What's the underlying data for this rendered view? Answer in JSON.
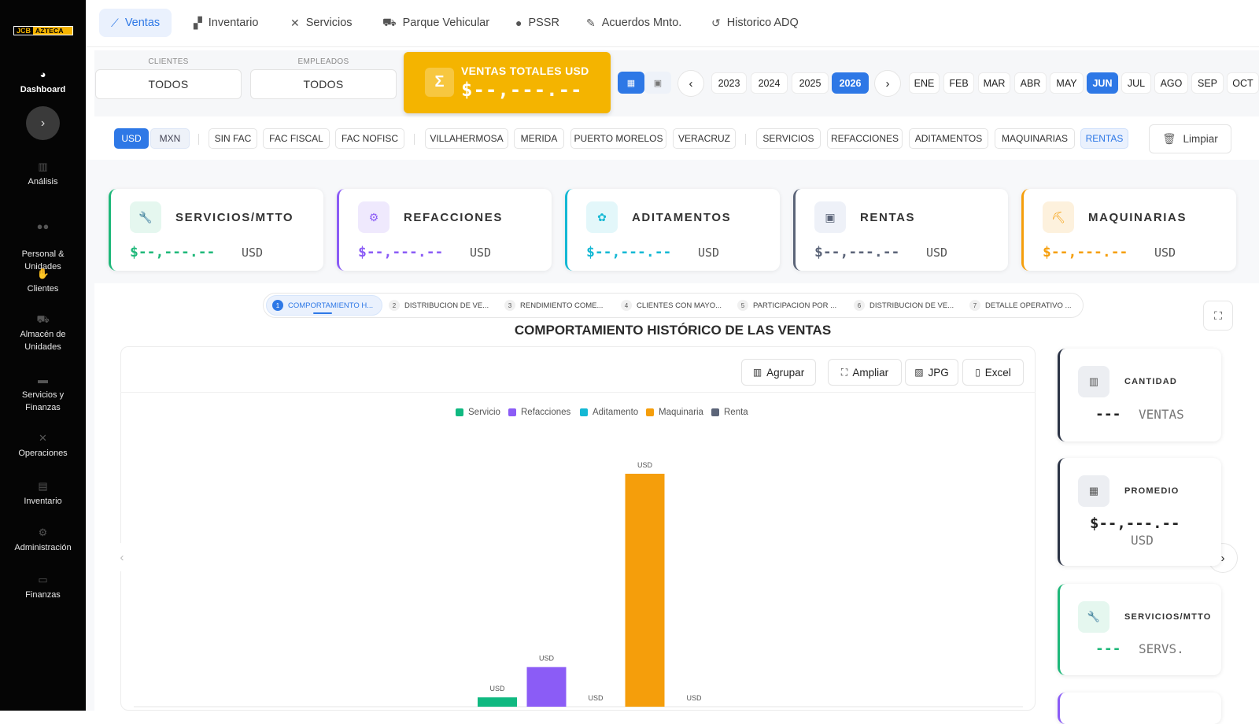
{
  "brand": {
    "logo_left": "JCB",
    "logo_right": "AZTECA"
  },
  "sidebar": {
    "items": [
      {
        "label": "Dashboard",
        "icon": "gauge-icon"
      },
      {
        "label": "Análisis",
        "icon": "bar-chart-icon"
      },
      {
        "label": "Personal &\nUnidades",
        "icon": "users-icon"
      },
      {
        "label": "Clientes",
        "icon": "handshake-icon"
      },
      {
        "label": "Almacén de\nUnidades",
        "icon": "truck-icon"
      },
      {
        "label": "Servicios y\nFinanzas",
        "icon": "folder-icon"
      },
      {
        "label": "Operaciones",
        "icon": "tools-icon"
      },
      {
        "label": "Inventario",
        "icon": "warehouse-icon"
      },
      {
        "label": "Administración",
        "icon": "gears-icon"
      },
      {
        "label": "Finanzas",
        "icon": "wallet-icon"
      }
    ],
    "collapse_icon": "chevron-right-icon"
  },
  "topnav": {
    "tabs": [
      {
        "label": "Ventas",
        "icon": "line-chart-icon"
      },
      {
        "label": "Inventario",
        "icon": "boxes-icon"
      },
      {
        "label": "Servicios",
        "icon": "wrench-icon"
      },
      {
        "label": "Parque Vehicular",
        "icon": "truck-icon"
      },
      {
        "label": "PSSR",
        "icon": "user-icon"
      },
      {
        "label": "Acuerdos Mnto.",
        "icon": "file-sign-icon"
      },
      {
        "label": "Historico ADQ",
        "icon": "history-icon"
      }
    ]
  },
  "filters": {
    "clientes": {
      "label": "CLIENTES",
      "value": "TODOS"
    },
    "empleados": {
      "label": "EMPLEADOS",
      "value": "TODOS"
    },
    "total": {
      "label": "VENTAS TOTALES USD",
      "value": "$--,---.--",
      "icon": "sigma-icon"
    },
    "years": [
      "2023",
      "2024",
      "2025",
      "2026"
    ],
    "selected_year": "2026",
    "months": [
      "ENE",
      "FEB",
      "MAR",
      "ABR",
      "MAY",
      "JUN",
      "JUL",
      "AGO",
      "SEP",
      "OCT"
    ],
    "selected_month": "JUN"
  },
  "chips": {
    "currency": [
      "USD",
      "MXN"
    ],
    "invoice": [
      "SIN FAC",
      "FAC FISCAL",
      "FAC NOFISC"
    ],
    "branches": [
      "VILLAHERMOSA",
      "MERIDA",
      "PUERTO MORELOS",
      "VERACRUZ"
    ],
    "categories": [
      "SERVICIOS",
      "REFACCIONES",
      "ADITAMENTOS",
      "MAQUINARIAS",
      "RENTAS"
    ],
    "clear_label": "Limpiar"
  },
  "kpis": [
    {
      "title": "SERVICIOS/MTTO",
      "value": "$--,---.--",
      "currency": "USD",
      "color": "#1fb87a",
      "icon": "wrench-icon"
    },
    {
      "title": "REFACCIONES",
      "value": "$--,---.--",
      "currency": "USD",
      "color": "#8b5cf6",
      "icon": "gear-icon"
    },
    {
      "title": "ADITAMENTOS",
      "value": "$--,---.--",
      "currency": "USD",
      "color": "#14b8d4",
      "icon": "puzzle-icon"
    },
    {
      "title": "RENTAS",
      "value": "$--,---.--",
      "currency": "USD",
      "color": "#5b6478",
      "icon": "calendar-icon"
    },
    {
      "title": "MAQUINARIAS",
      "value": "$--,---.--",
      "currency": "USD",
      "color": "#f59e0b",
      "icon": "excavator-icon"
    }
  ],
  "steps": [
    {
      "num": "1",
      "label": "COMPORTAMIENTO H..."
    },
    {
      "num": "2",
      "label": "DISTRIBUCION DE VE..."
    },
    {
      "num": "3",
      "label": "RENDIMIENTO COME..."
    },
    {
      "num": "4",
      "label": "CLIENTES CON MAYO..."
    },
    {
      "num": "5",
      "label": "PARTICIPACION POR ..."
    },
    {
      "num": "6",
      "label": "DISTRIBUCION DE VE..."
    },
    {
      "num": "7",
      "label": "DETALLE OPERATIVO ..."
    }
  ],
  "chart": {
    "title": "COMPORTAMIENTO HISTÓRICO DE LAS VENTAS",
    "tools": [
      {
        "label": "Agrupar",
        "icon": "bar-chart-icon"
      },
      {
        "label": "Ampliar",
        "icon": "expand-icon"
      },
      {
        "label": "JPG",
        "icon": "image-icon"
      },
      {
        "label": "Excel",
        "icon": "file-icon"
      }
    ]
  },
  "chart_data": {
    "type": "bar",
    "categories": [
      "Servicio",
      "Refacciones",
      "Aditamento",
      "Maquinaria",
      "Renta"
    ],
    "values": [
      4,
      17,
      0,
      100,
      0
    ],
    "data_labels": [
      "USD",
      "USD",
      "USD",
      "USD",
      "USD"
    ],
    "legend": [
      "Servicio",
      "Refacciones",
      "Aditamento",
      "Maquinaria",
      "Renta"
    ],
    "colors": [
      "#10b981",
      "#8b5cf6",
      "#14b8d4",
      "#f59e0b",
      "#5b6478"
    ],
    "legend_position": "top-center",
    "grid": false
  },
  "side_cards": [
    {
      "title": "CANTIDAD",
      "value": "---",
      "unit": "VENTAS",
      "color": "#2b3345",
      "icon": "chart-icon"
    },
    {
      "title": "PROMEDIO",
      "value": "$--,---.--",
      "unit": "USD",
      "color": "#2b3345",
      "icon": "calculator-icon"
    },
    {
      "title": "SERVICIOS/MTTO",
      "value": "---",
      "unit": "SERVS.",
      "color": "#1fb87a",
      "icon": "wrench-icon"
    }
  ]
}
